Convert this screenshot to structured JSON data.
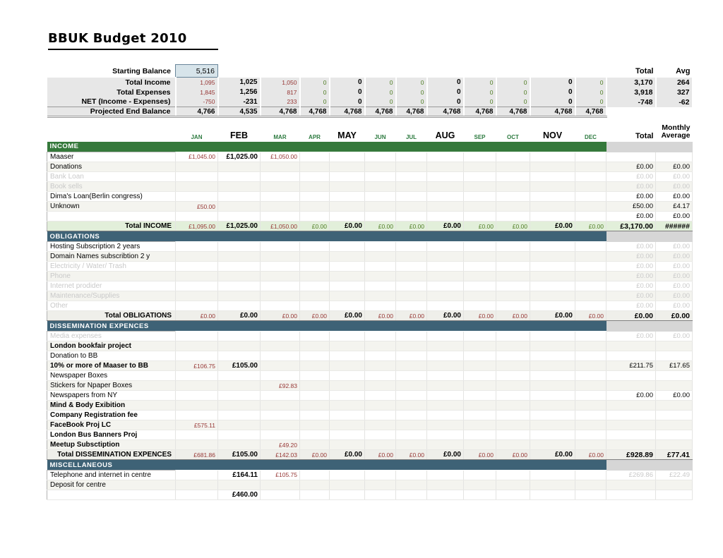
{
  "title": "BBUK Budget 2010",
  "columns": {
    "months": [
      "JAN",
      "FEB",
      "MAR",
      "APR",
      "MAY",
      "JUN",
      "JUL",
      "AUG",
      "SEP",
      "OCT",
      "NOV",
      "DEC"
    ],
    "major_months": [
      "FEB",
      "MAY",
      "AUG",
      "NOV"
    ],
    "summary_total_header": "Total",
    "summary_avg_header": "Avg",
    "month_total_header": "Total",
    "monthly_average_header_lines": [
      "Monthly",
      "Average"
    ]
  },
  "summary": {
    "starting_balance": {
      "label": "Starting Balance",
      "value": "5,516"
    },
    "rows": [
      {
        "label": "Total Income",
        "values": [
          "1,095",
          "1,025",
          "1,050",
          "0",
          "0",
          "0",
          "0",
          "0",
          "0",
          "0",
          "0",
          "0"
        ],
        "total": "3,170",
        "avg": "264"
      },
      {
        "label": "Total Expenses",
        "values": [
          "1,845",
          "1,256",
          "817",
          "0",
          "0",
          "0",
          "0",
          "0",
          "0",
          "0",
          "0",
          "0"
        ],
        "total": "3,918",
        "avg": "327"
      },
      {
        "label": "NET (Income - Expenses)",
        "values": [
          "-750",
          "-231",
          "233",
          "0",
          "0",
          "0",
          "0",
          "0",
          "0",
          "0",
          "0",
          "0"
        ],
        "total": "-748",
        "avg": "-62"
      },
      {
        "label": "Projected End Balance",
        "values": [
          "4,766",
          "4,535",
          "4,768",
          "4,768",
          "4,768",
          "4,768",
          "4,768",
          "4,768",
          "4,768",
          "4,768",
          "4,768",
          "4,768"
        ],
        "total": "",
        "avg": "",
        "uniform": true
      }
    ]
  },
  "colors": {
    "income_header_bg": "#35793B",
    "expense_header_bg": "#3E6276",
    "income_total_bg": "#E2EFDA",
    "expense_total_bg": "#EFEFEA",
    "summary_band_bg": "#E7E7E7",
    "starting_balance_bg": "#D7E4EA",
    "minor_value_red": "#963634",
    "minor_zero_green": "#4E7D22",
    "month_label_green": "#2C7A3F",
    "muted_gray": "#C9C9C9"
  },
  "sections": [
    {
      "name": "INCOME",
      "header_bg": "#35793B",
      "total_bg": "#E2EFDA",
      "zero_green": true,
      "rows": [
        {
          "label": "Maaser",
          "values": {
            "JAN": "£1,045.00",
            "FEB": "£1,025.00",
            "MAR": "£1,050.00"
          },
          "total": "",
          "avg": ""
        },
        {
          "label": "Donations",
          "total": "£0.00",
          "avg": "£0.00"
        },
        {
          "label": "Bank Loan",
          "style": "muted",
          "muted_totals": true,
          "total": "£0.00",
          "avg": "£0.00"
        },
        {
          "label": "Book sells",
          "style": "muted",
          "muted_totals": true,
          "total": "£0.00",
          "avg": "£0.00"
        },
        {
          "label": "Dima's Loan(Berlin congress)",
          "total": "£0.00",
          "avg": "£0.00"
        },
        {
          "label": "Unknown",
          "values": {
            "JAN": "£50.00"
          },
          "total": "£50.00",
          "avg": "£4.17"
        },
        {
          "label": "",
          "total": "£0.00",
          "avg": "£0.00"
        },
        {
          "label": "Total INCOME",
          "style": "total",
          "values": {
            "JAN": "£1,095.00",
            "FEB": "£1,025.00",
            "MAR": "£1,050.00",
            "APR": "£0.00",
            "MAY": "£0.00",
            "JUN": "£0.00",
            "JUL": "£0.00",
            "AUG": "£0.00",
            "SEP": "£0.00",
            "OCT": "£0.00",
            "NOV": "£0.00",
            "DEC": "£0.00"
          },
          "total": "£3,170.00",
          "avg": "######"
        }
      ]
    },
    {
      "name": "OBLIGATIONS",
      "header_bg": "#3E6276",
      "total_bg": "#EFEFEA",
      "zero_green": false,
      "rows": [
        {
          "label": "Hosting Subscription 2 years",
          "muted_totals": true,
          "total": "£0.00",
          "avg": "£0.00"
        },
        {
          "label": "Domain Names subscribtion 2 y",
          "muted_totals": true,
          "total": "£0.00",
          "avg": "£0.00"
        },
        {
          "label": "Electricity / Water/ Trash",
          "style": "muted",
          "muted_totals": true,
          "total": "£0.00",
          "avg": "£0.00"
        },
        {
          "label": "Phone",
          "style": "muted",
          "muted_totals": true,
          "total": "£0.00",
          "avg": "£0.00"
        },
        {
          "label": "Internet prodider",
          "style": "muted",
          "muted_totals": true,
          "total": "£0.00",
          "avg": "£0.00"
        },
        {
          "label": "Maintenance/Supplies",
          "style": "muted",
          "muted_totals": true,
          "total": "£0.00",
          "avg": "£0.00"
        },
        {
          "label": "Other",
          "style": "muted",
          "muted_totals": true,
          "total": "£0.00",
          "avg": "£0.00"
        },
        {
          "label": "Total OBLIGATIONS",
          "style": "total",
          "values": {
            "JAN": "£0.00",
            "FEB": "£0.00",
            "MAR": "£0.00",
            "APR": "£0.00",
            "MAY": "£0.00",
            "JUN": "£0.00",
            "JUL": "£0.00",
            "AUG": "£0.00",
            "SEP": "£0.00",
            "OCT": "£0.00",
            "NOV": "£0.00",
            "DEC": "£0.00"
          },
          "total": "£0.00",
          "avg": "£0.00"
        }
      ]
    },
    {
      "name": "DISSEMINATION EXPENCES",
      "header_bg": "#3E6276",
      "total_bg": "#EFEFEA",
      "zero_green": false,
      "rows": [
        {
          "label": "Media expenses",
          "style": "muted",
          "muted_totals": true,
          "total": "£0.00",
          "avg": "£0.00"
        },
        {
          "label": "London bookfair project",
          "style": "bold"
        },
        {
          "label": "Donation to BB"
        },
        {
          "label": "10% or more of Maaser to BB",
          "style": "bold",
          "values": {
            "JAN": "£106.75",
            "FEB": "£105.00"
          },
          "total": "£211.75",
          "avg": "£17.65"
        },
        {
          "label": "Newspaper Boxes"
        },
        {
          "label": "Stickers for Npaper Boxes",
          "values": {
            "MAR": "£92.83"
          }
        },
        {
          "label": "Newspapers from NY",
          "total": "£0.00",
          "avg": "£0.00"
        },
        {
          "label": "Mind & Body Exibition",
          "style": "bold"
        },
        {
          "label": "Company Registration fee",
          "style": "bold"
        },
        {
          "label": "FaceBook Proj LC",
          "style": "bold",
          "values": {
            "JAN": "£575.11"
          }
        },
        {
          "label": "London Bus Banners Proj",
          "style": "bold"
        },
        {
          "label": "Meetup Subsctiption",
          "style": "bold",
          "values": {
            "MAR": "£49.20"
          }
        },
        {
          "label": "Total DISSEMINATION EXPENCES",
          "style": "total",
          "values": {
            "JAN": "£681.86",
            "FEB": "£105.00",
            "MAR": "£142.03",
            "APR": "£0.00",
            "MAY": "£0.00",
            "JUN": "£0.00",
            "JUL": "£0.00",
            "AUG": "£0.00",
            "SEP": "£0.00",
            "OCT": "£0.00",
            "NOV": "£0.00",
            "DEC": "£0.00"
          },
          "total": "£928.89",
          "avg": "£77.41"
        }
      ]
    },
    {
      "name": "MISCELLANEOUS",
      "header_bg": "#3E6276",
      "zero_green": false,
      "rows": [
        {
          "label": "Telephone and internet in centre",
          "values": {
            "FEB": "£164.11",
            "MAR": "£105.75"
          },
          "muted_totals": true,
          "total": "£269.86",
          "avg": "£22.49"
        },
        {
          "label": "Deposit for centre"
        },
        {
          "label": "",
          "values": {
            "FEB": "£460.00"
          }
        }
      ]
    }
  ]
}
